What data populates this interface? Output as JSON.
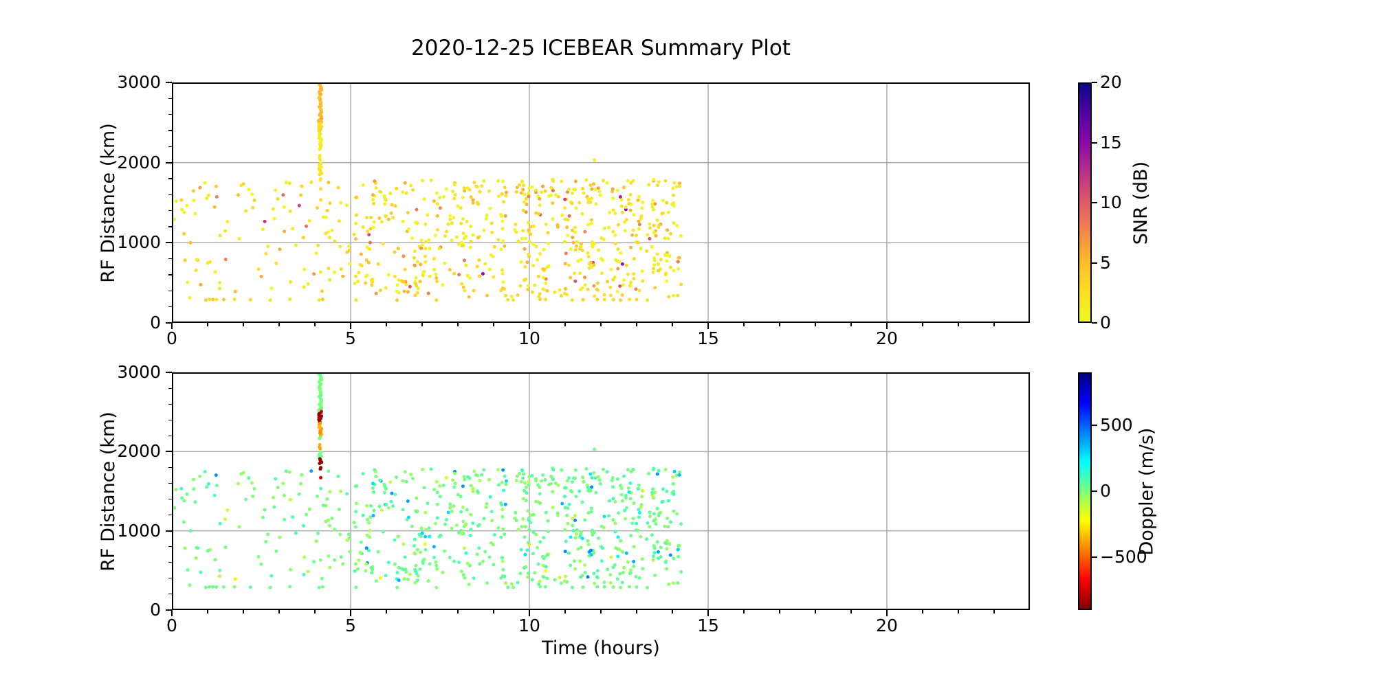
{
  "chart_data": {
    "type": "scatter",
    "title": "2020-12-25 ICEBEAR Summary Plot",
    "xlabel": "Time (hours)",
    "grid": true,
    "grid_color": "#b0b0b0",
    "background_color": "#ffffff",
    "xlim": [
      0,
      24
    ],
    "x_minor_step": 1,
    "y_minor_step": 200,
    "panels": [
      {
        "name": "snr-panel",
        "ylabel": "RF Distance (km)",
        "ylim": [
          0,
          3000
        ],
        "xticks": [
          0,
          5,
          10,
          15,
          20
        ],
        "xtick_labels": [
          "0",
          "5",
          "10",
          "15",
          "20"
        ],
        "yticks": [
          0,
          1000,
          2000,
          3000
        ],
        "ytick_labels": [
          "0",
          "1000",
          "2000",
          "3000"
        ],
        "color_by": "snr",
        "colorbar": {
          "label": "SNR (dB)",
          "colormap": "plasma_r",
          "vmin": 0,
          "vmax": 20,
          "tick_values": [
            0,
            5,
            10,
            15,
            20
          ],
          "tick_labels": [
            "0",
            "5",
            "10",
            "15",
            "20"
          ]
        }
      },
      {
        "name": "doppler-panel",
        "ylabel": "RF Distance (km)",
        "ylim": [
          0,
          3000
        ],
        "xticks": [
          0,
          5,
          10,
          15,
          20
        ],
        "xtick_labels": [
          "0",
          "5",
          "10",
          "15",
          "20"
        ],
        "yticks": [
          0,
          1000,
          2000,
          3000
        ],
        "ytick_labels": [
          "0",
          "1000",
          "2000",
          "3000"
        ],
        "color_by": "doppler",
        "colorbar": {
          "label": "Doppler (m/s)",
          "colormap": "jet_r",
          "vmin": -900,
          "vmax": 900,
          "tick_values": [
            500,
            0,
            -500
          ],
          "tick_labels": [
            "500",
            "0",
            "−500"
          ]
        }
      }
    ],
    "colormaps": {
      "plasma": [
        [
          0.0,
          "#0d0887"
        ],
        [
          0.125,
          "#5402a3"
        ],
        [
          0.25,
          "#8b0aa5"
        ],
        [
          0.375,
          "#b93289"
        ],
        [
          0.5,
          "#db5c68"
        ],
        [
          0.625,
          "#f48849"
        ],
        [
          0.75,
          "#febc2b"
        ],
        [
          0.875,
          "#fbde25"
        ],
        [
          1.0,
          "#f0f921"
        ]
      ],
      "jet": [
        [
          0.0,
          "#000080"
        ],
        [
          0.125,
          "#0000ff"
        ],
        [
          0.375,
          "#00ffff"
        ],
        [
          0.5,
          "#7dff7a"
        ],
        [
          0.625,
          "#ffff00"
        ],
        [
          0.875,
          "#ff0000"
        ],
        [
          1.0,
          "#800000"
        ]
      ]
    },
    "points": {
      "description": "Coherent-scatter detections, t in hours, rf in km, snr in dB, doppler in m/s. Main cluster 0-14.2 h between ~280-1790 km, denser after 5 h; mostly low SNR (yellow-orange) and near-zero Doppler (light green) with ~6% cyan (+200..+450 m/s) outliers.",
      "seed": 42,
      "marker_radius_px": 2.5,
      "clusters": [
        {
          "n": 105,
          "t": [
            0.1,
            5.0
          ],
          "rf": [
            300,
            1760
          ]
        },
        {
          "n": 280,
          "t": [
            5.0,
            10.0
          ],
          "rf": [
            310,
            1780
          ]
        },
        {
          "n": 330,
          "t": [
            9.8,
            14.25
          ],
          "rf": [
            310,
            1790
          ]
        }
      ],
      "baseline_row": {
        "rf": 290,
        "snr": [
          1.5,
          4.5
        ],
        "doppler": [
          -10,
          40
        ],
        "t_values": [
          0.95,
          1.05,
          1.15,
          1.25,
          1.45,
          1.75,
          2.2,
          2.75,
          3.3,
          4.12,
          4.22,
          5.15,
          6.3,
          7.4,
          9.4,
          9.55,
          10.3,
          10.45,
          11.2,
          11.5,
          11.9,
          12.1,
          12.35,
          12.55,
          12.8,
          13.0,
          13.3
        ]
      },
      "streak": {
        "t_center": 4.15,
        "t_jitter": 0.04,
        "segments": [
          {
            "rf": [
              2500,
              2985
            ],
            "n": 34,
            "snr": [
              4.0,
              6.5
            ],
            "doppler": [
              -15,
              45
            ]
          },
          {
            "rf": [
              2505,
              2515
            ],
            "n": 1,
            "snr": [
              4.5,
              5.0
            ],
            "doppler": [
              -620,
              -580
            ]
          },
          {
            "rf": [
              2365,
              2500
            ],
            "n": 9,
            "snr": [
              2.0,
              3.5
            ],
            "doppler": [
              -880,
              -800
            ]
          },
          {
            "rf": [
              2330,
              2365
            ],
            "n": 3,
            "snr": [
              1.5,
              2.5
            ],
            "doppler": [
              -460,
              -400
            ]
          },
          {
            "rf": [
              2195,
              2330
            ],
            "n": 9,
            "snr": [
              0.5,
              2.0
            ],
            "doppler": [
              -430,
              -340
            ]
          },
          {
            "rf": [
              2160,
              2185
            ],
            "n": 2,
            "snr": [
              0.8,
              1.6
            ],
            "doppler": [
              -5,
              35
            ]
          },
          {
            "rf": [
              2020,
              2100
            ],
            "n": 3,
            "snr": [
              0.8,
              1.8
            ],
            "doppler": [
              -400,
              -360
            ]
          },
          {
            "rf": [
              1915,
              1995
            ],
            "n": 5,
            "snr": [
              0.8,
              2.2
            ],
            "doppler": [
              0,
              30
            ]
          },
          {
            "rf": [
              1845,
              1915
            ],
            "n": 5,
            "snr": [
              1.2,
              2.8
            ],
            "doppler": [
              -900,
              -840
            ]
          },
          {
            "rf": [
              1770,
              1805
            ],
            "n": 2,
            "snr": [
              1.2,
              2.4
            ],
            "doppler": [
              -880,
              -850
            ]
          },
          {
            "rf": [
              1655,
              1680
            ],
            "n": 1,
            "snr": [
              1.8,
              2.6
            ],
            "doppler": [
              -770,
              -730
            ]
          }
        ]
      },
      "extra_points": [
        {
          "t": 3.9,
          "rf": 1755,
          "snr": 2.2,
          "doppler": 400
        },
        {
          "t": 11.82,
          "rf": 2030,
          "snr": 1.0,
          "doppler": 25
        },
        {
          "t": 0.07,
          "rf": 1290,
          "snr": 1.5,
          "doppler": 10
        },
        {
          "t": 14.2,
          "rf": 1705,
          "snr": 2.0,
          "doppler": 330
        }
      ]
    }
  }
}
